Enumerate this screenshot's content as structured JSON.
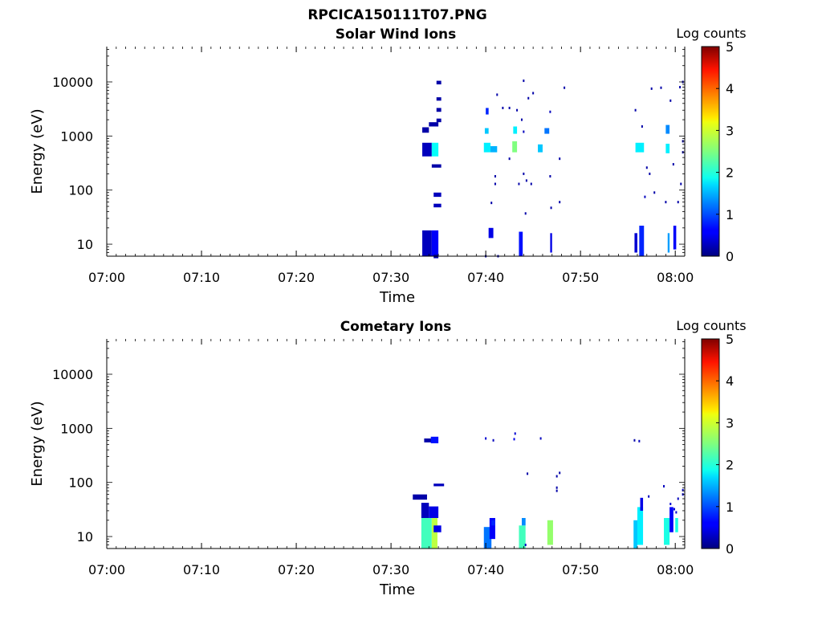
{
  "figure": {
    "title": "RPCICA150111T07.PNG"
  },
  "chart_data": [
    {
      "type": "heatmap",
      "title": "Solar Wind Ions",
      "xlabel": "Time",
      "ylabel": "Energy (eV)",
      "x_scale": "time",
      "y_scale": "log",
      "xlim": [
        "07:00",
        "08:01"
      ],
      "ylim": [
        6,
        45000
      ],
      "x_ticks": [
        "07:00",
        "07:10",
        "07:20",
        "07:30",
        "07:40",
        "07:50",
        "08:00"
      ],
      "y_ticks": [
        "10",
        "100",
        "1000",
        "10000"
      ],
      "colorbar": {
        "label": "Log counts",
        "ticks": [
          "0",
          "1",
          "2",
          "3",
          "4",
          "5"
        ],
        "range": [
          0,
          5
        ],
        "colormap": "jet"
      },
      "cells": [
        {
          "t0": "07:33.3",
          "t1": "07:34.3",
          "e0": 6,
          "e1": 18,
          "v": 0.3
        },
        {
          "t0": "07:34.3",
          "t1": "07:35.0",
          "e0": 6,
          "e1": 18,
          "v": 0.6
        },
        {
          "t0": "07:34.5",
          "t1": "07:35.0",
          "e0": 5.5,
          "e1": 6.5,
          "v": 0.2
        },
        {
          "t0": "07:33.3",
          "t1": "07:34.3",
          "e0": 420,
          "e1": 750,
          "v": 0.3
        },
        {
          "t0": "07:34.3",
          "t1": "07:35.0",
          "e0": 420,
          "e1": 750,
          "v": 1.9
        },
        {
          "t0": "07:33.3",
          "t1": "07:34.0",
          "e0": 1150,
          "e1": 1450,
          "v": 0.2
        },
        {
          "t0": "07:34.0",
          "t1": "07:35.0",
          "e0": 1500,
          "e1": 1800,
          "v": 0.2
        },
        {
          "t0": "07:34.3",
          "t1": "07:35.3",
          "e0": 260,
          "e1": 300,
          "v": 0.2
        },
        {
          "t0": "07:34.5",
          "t1": "07:35.3",
          "e0": 75,
          "e1": 90,
          "v": 0.3
        },
        {
          "t0": "07:34.5",
          "t1": "07:35.3",
          "e0": 48,
          "e1": 56,
          "v": 0.3
        },
        {
          "t0": "07:34.8",
          "t1": "07:35.3",
          "e0": 9000,
          "e1": 10500,
          "v": 0.2
        },
        {
          "t0": "07:34.8",
          "t1": "07:35.3",
          "e0": 4500,
          "e1": 5200,
          "v": 0.2
        },
        {
          "t0": "07:34.8",
          "t1": "07:35.3",
          "e0": 2800,
          "e1": 3300,
          "v": 0.2
        },
        {
          "t0": "07:34.8",
          "t1": "07:35.3",
          "e0": 1800,
          "e1": 2100,
          "v": 0.2
        },
        {
          "t0": "07:39.8",
          "t1": "07:40.5",
          "e0": 500,
          "e1": 750,
          "v": 1.8
        },
        {
          "t0": "07:40.5",
          "t1": "07:41.2",
          "e0": 500,
          "e1": 650,
          "v": 1.5
        },
        {
          "t0": "07:39.9",
          "t1": "07:40.3",
          "e0": 1100,
          "e1": 1400,
          "v": 1.6
        },
        {
          "t0": "07:40.0",
          "t1": "07:40.3",
          "e0": 2500,
          "e1": 3300,
          "v": 0.8
        },
        {
          "t0": "07:40.3",
          "t1": "07:40.8",
          "e0": 13,
          "e1": 20,
          "v": 0.5
        },
        {
          "t0": "07:42.8",
          "t1": "07:43.3",
          "e0": 500,
          "e1": 800,
          "v": 2.5
        },
        {
          "t0": "07:42.9",
          "t1": "07:43.3",
          "e0": 1100,
          "e1": 1500,
          "v": 1.8
        },
        {
          "t0": "07:43.5",
          "t1": "07:43.9",
          "e0": 6,
          "e1": 17,
          "v": 0.7
        },
        {
          "t0": "07:45.5",
          "t1": "07:46.0",
          "e0": 500,
          "e1": 700,
          "v": 1.6
        },
        {
          "t0": "07:46.2",
          "t1": "07:46.7",
          "e0": 1100,
          "e1": 1400,
          "v": 1.2
        },
        {
          "t0": "07:46.8",
          "t1": "07:47.0",
          "e0": 7,
          "e1": 16,
          "v": 0.5
        },
        {
          "t0": "07:55.8",
          "t1": "07:56.7",
          "e0": 500,
          "e1": 750,
          "v": 1.8
        },
        {
          "t0": "07:55.7",
          "t1": "07:56.0",
          "e0": 7,
          "e1": 16,
          "v": 0.4
        },
        {
          "t0": "07:56.2",
          "t1": "07:56.7",
          "e0": 6,
          "e1": 22,
          "v": 0.8
        },
        {
          "t0": "07:59.0",
          "t1": "07:59.4",
          "e0": 480,
          "e1": 720,
          "v": 1.8
        },
        {
          "t0": "07:59.0",
          "t1": "07:59.4",
          "e0": 1100,
          "e1": 1600,
          "v": 1.3
        },
        {
          "t0": "07:59.2",
          "t1": "07:59.4",
          "e0": 7,
          "e1": 16,
          "v": 1.4
        },
        {
          "t0": "07:59.8",
          "t1": "08:00.1",
          "e0": 8,
          "e1": 22,
          "v": 0.6
        }
      ],
      "dots": [
        {
          "t": "07:41.2",
          "e": 5800,
          "v": 0.2
        },
        {
          "t": "07:41.8",
          "e": 3300,
          "v": 0.2
        },
        {
          "t": "07:42.5",
          "e": 3300,
          "v": 0.2
        },
        {
          "t": "07:43.3",
          "e": 3000,
          "v": 0.2
        },
        {
          "t": "07:44.0",
          "e": 10500,
          "v": 0.2
        },
        {
          "t": "07:44.5",
          "e": 5000,
          "v": 0.2
        },
        {
          "t": "07:45.0",
          "e": 6200,
          "v": 0.2
        },
        {
          "t": "07:43.8",
          "e": 2000,
          "v": 0.2
        },
        {
          "t": "07:46.8",
          "e": 2800,
          "v": 0.3
        },
        {
          "t": "07:48.3",
          "e": 7800,
          "v": 0.2
        },
        {
          "t": "07:41.0",
          "e": 180,
          "v": 0.2
        },
        {
          "t": "07:41.0",
          "e": 130,
          "v": 0.2
        },
        {
          "t": "07:42.5",
          "e": 380,
          "v": 0.2
        },
        {
          "t": "07:43.5",
          "e": 130,
          "v": 0.2
        },
        {
          "t": "07:44.0",
          "e": 200,
          "v": 0.2
        },
        {
          "t": "07:44.3",
          "e": 150,
          "v": 0.2
        },
        {
          "t": "07:44.2",
          "e": 37,
          "v": 0.2
        },
        {
          "t": "07:44.8",
          "e": 130,
          "v": 0.2
        },
        {
          "t": "07:46.8",
          "e": 180,
          "v": 0.2
        },
        {
          "t": "07:46.9",
          "e": 47,
          "v": 0.2
        },
        {
          "t": "07:47.8",
          "e": 60,
          "v": 0.2
        },
        {
          "t": "07:40.6",
          "e": 58,
          "v": 0.2
        },
        {
          "t": "07:41.3",
          "e": 6,
          "v": 0.2
        },
        {
          "t": "07:40.0",
          "e": 6,
          "v": 0.2
        },
        {
          "t": "07:47.8",
          "e": 380,
          "v": 0.2
        },
        {
          "t": "07:44.0",
          "e": 1200,
          "v": 0.3
        },
        {
          "t": "07:56.5",
          "e": 1500,
          "v": 0.2
        },
        {
          "t": "07:55.8",
          "e": 3000,
          "v": 0.2
        },
        {
          "t": "07:57.5",
          "e": 7500,
          "v": 0.2
        },
        {
          "t": "07:58.5",
          "e": 7800,
          "v": 0.2
        },
        {
          "t": "07:59.5",
          "e": 4500,
          "v": 0.2
        },
        {
          "t": "08:00.5",
          "e": 8000,
          "v": 0.2
        },
        {
          "t": "08:00.8",
          "e": 10000,
          "v": 0.2
        },
        {
          "t": "07:57.0",
          "e": 260,
          "v": 0.2
        },
        {
          "t": "07:57.3",
          "e": 200,
          "v": 0.2
        },
        {
          "t": "07:56.8",
          "e": 75,
          "v": 0.3
        },
        {
          "t": "07:57.8",
          "e": 90,
          "v": 0.2
        },
        {
          "t": "07:59.0",
          "e": 60,
          "v": 0.2
        },
        {
          "t": "07:59.8",
          "e": 300,
          "v": 0.2
        },
        {
          "t": "08:00.6",
          "e": 130,
          "v": 0.2
        },
        {
          "t": "08:00.3",
          "e": 60,
          "v": 0.2
        },
        {
          "t": "08:00.8",
          "e": 500,
          "v": 0.2
        },
        {
          "t": "08:00.8",
          "e": 800,
          "v": 0.2
        }
      ]
    },
    {
      "type": "heatmap",
      "title": "Cometary Ions",
      "xlabel": "Time",
      "ylabel": "Energy (eV)",
      "x_scale": "time",
      "y_scale": "log",
      "xlim": [
        "07:00",
        "08:01"
      ],
      "ylim": [
        6,
        45000
      ],
      "x_ticks": [
        "07:00",
        "07:10",
        "07:20",
        "07:30",
        "07:40",
        "07:50",
        "08:00"
      ],
      "y_ticks": [
        "10",
        "100",
        "1000",
        "10000"
      ],
      "colorbar": {
        "label": "Log counts",
        "ticks": [
          "0",
          "1",
          "2",
          "3",
          "4",
          "5"
        ],
        "range": [
          0,
          5
        ],
        "colormap": "jet"
      },
      "cells": [
        {
          "t0": "07:33.2",
          "t1": "07:34.3",
          "e0": 6,
          "e1": 22,
          "v": 2.2
        },
        {
          "t0": "07:34.3",
          "t1": "07:34.9",
          "e0": 6,
          "e1": 22,
          "v": 2.8
        },
        {
          "t0": "07:33.2",
          "t1": "07:34.0",
          "e0": 22,
          "e1": 42,
          "v": 0.3
        },
        {
          "t0": "07:34.0",
          "t1": "07:35.0",
          "e0": 22,
          "e1": 36,
          "v": 0.5
        },
        {
          "t0": "07:34.5",
          "t1": "07:35.3",
          "e0": 12,
          "e1": 16,
          "v": 0.5
        },
        {
          "t0": "07:32.3",
          "t1": "07:33.8",
          "e0": 48,
          "e1": 60,
          "v": 0.2
        },
        {
          "t0": "07:33.5",
          "t1": "07:34.5",
          "e0": 550,
          "e1": 650,
          "v": 0.2
        },
        {
          "t0": "07:34.2",
          "t1": "07:35.0",
          "e0": 530,
          "e1": 700,
          "v": 0.7
        },
        {
          "t0": "07:34.5",
          "t1": "07:35.6",
          "e0": 85,
          "e1": 95,
          "v": 0.3
        },
        {
          "t0": "07:39.8",
          "t1": "07:40.6",
          "e0": 6,
          "e1": 15,
          "v": 1.2
        },
        {
          "t0": "07:40.4",
          "t1": "07:41.0",
          "e0": 9,
          "e1": 22,
          "v": 0.6
        },
        {
          "t0": "07:40.6",
          "t1": "07:41.0",
          "e0": 16,
          "e1": 20,
          "v": 0.8
        },
        {
          "t0": "07:43.5",
          "t1": "07:44.2",
          "e0": 6,
          "e1": 16,
          "v": 2.2
        },
        {
          "t0": "07:43.8",
          "t1": "07:44.2",
          "e0": 16,
          "e1": 22,
          "v": 1.3
        },
        {
          "t0": "07:46.5",
          "t1": "07:47.1",
          "e0": 7,
          "e1": 20,
          "v": 2.6
        },
        {
          "t0": "07:55.6",
          "t1": "07:56.0",
          "e0": 6,
          "e1": 20,
          "v": 1.6
        },
        {
          "t0": "07:56.0",
          "t1": "07:56.6",
          "e0": 7,
          "e1": 35,
          "v": 1.8
        },
        {
          "t0": "07:56.3",
          "t1": "07:56.6",
          "e0": 30,
          "e1": 52,
          "v": 0.5
        },
        {
          "t0": "07:58.8",
          "t1": "07:59.4",
          "e0": 7,
          "e1": 22,
          "v": 2.0
        },
        {
          "t0": "07:59.4",
          "t1": "07:59.8",
          "e0": 12,
          "e1": 35,
          "v": 0.6
        },
        {
          "t0": "08:00.0",
          "t1": "08:00.3",
          "e0": 12,
          "e1": 22,
          "v": 2.0
        }
      ],
      "dots": [
        {
          "t": "07:40.0",
          "e": 650,
          "v": 0.4
        },
        {
          "t": "07:40.8",
          "e": 600,
          "v": 0.3
        },
        {
          "t": "07:43.0",
          "e": 630,
          "v": 0.5
        },
        {
          "t": "07:43.1",
          "e": 800,
          "v": 0.4
        },
        {
          "t": "07:45.8",
          "e": 650,
          "v": 0.3
        },
        {
          "t": "07:44.4",
          "e": 145,
          "v": 0.2
        },
        {
          "t": "07:47.5",
          "e": 130,
          "v": 0.2
        },
        {
          "t": "07:47.8",
          "e": 150,
          "v": 0.2
        },
        {
          "t": "07:47.5",
          "e": 80,
          "v": 0.2
        },
        {
          "t": "07:47.5",
          "e": 70,
          "v": 0.2
        },
        {
          "t": "07:55.7",
          "e": 600,
          "v": 0.2
        },
        {
          "t": "07:56.2",
          "e": 580,
          "v": 0.3
        },
        {
          "t": "07:57.2",
          "e": 55,
          "v": 0.3
        },
        {
          "t": "07:58.8",
          "e": 85,
          "v": 0.3
        },
        {
          "t": "08:00.3",
          "e": 50,
          "v": 0.3
        },
        {
          "t": "08:00.8",
          "e": 60,
          "v": 0.4
        },
        {
          "t": "08:00.8",
          "e": 72,
          "v": 0.4
        },
        {
          "t": "07:59.5",
          "e": 40,
          "v": 0.4
        },
        {
          "t": "07:59.9",
          "e": 32,
          "v": 0.4
        },
        {
          "t": "08:00.1",
          "e": 28,
          "v": 0.4
        },
        {
          "t": "07:44.2",
          "e": 7,
          "v": 0.3
        }
      ]
    }
  ]
}
